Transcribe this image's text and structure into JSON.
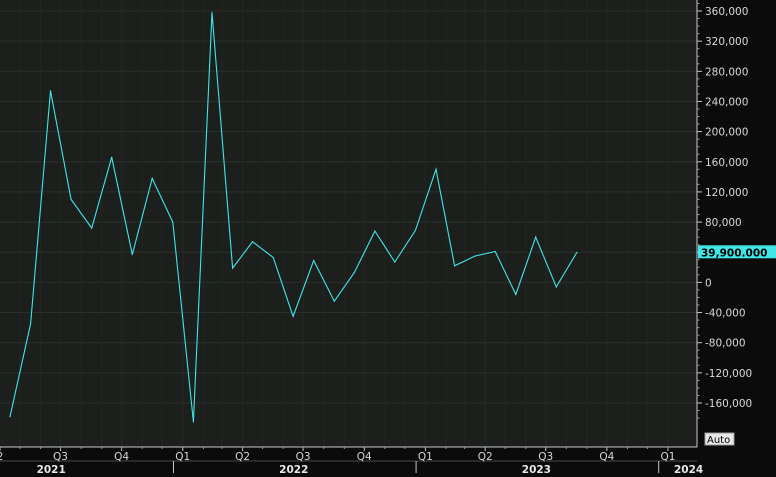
{
  "chart_data": {
    "type": "line",
    "title": "",
    "xlabel": "",
    "ylabel": "",
    "ylim": [
      -190000,
      370000
    ],
    "y_ticks": [
      360000,
      320000,
      280000,
      240000,
      200000,
      160000,
      120000,
      80000,
      40000,
      0,
      -40000,
      -80000,
      -120000,
      -160000
    ],
    "y_tick_labels": [
      "360,000",
      "320,000",
      "280,000",
      "240,000",
      "200,000",
      "160,000",
      "120,000",
      "80,000",
      "40,000",
      "0",
      "-40,000",
      "-80,000",
      "-120,000",
      "-160,000"
    ],
    "last_value_label": "39,900.000",
    "auto_label": "Auto",
    "grid": true,
    "series": [
      {
        "color": "#40e6e6",
        "points": [
          [
            "2021-04-30",
            -178000
          ],
          [
            "2021-05-31",
            -55000
          ],
          [
            "2021-06-30",
            254000
          ],
          [
            "2021-07-31",
            110000
          ],
          [
            "2021-08-31",
            72000
          ],
          [
            "2021-09-30",
            166000
          ],
          [
            "2021-10-31",
            37000
          ],
          [
            "2021-11-30",
            138000
          ],
          [
            "2021-12-31",
            80000
          ],
          [
            "2022-01-31",
            -185000
          ],
          [
            "2022-02-28",
            358000
          ],
          [
            "2022-03-31",
            19000
          ],
          [
            "2022-04-30",
            54000
          ],
          [
            "2022-05-31",
            33000
          ],
          [
            "2022-06-30",
            -45000
          ],
          [
            "2022-07-31",
            29000
          ],
          [
            "2022-08-31",
            -25000
          ],
          [
            "2022-09-30",
            13000
          ],
          [
            "2022-10-31",
            68000
          ],
          [
            "2022-11-30",
            27000
          ],
          [
            "2022-12-31",
            69000
          ],
          [
            "2023-01-31",
            150000
          ],
          [
            "2023-02-28",
            22000
          ],
          [
            "2023-03-31",
            35000
          ],
          [
            "2023-04-30",
            41000
          ],
          [
            "2023-05-31",
            -16000
          ],
          [
            "2023-06-30",
            60000
          ],
          [
            "2023-07-31",
            -6000
          ],
          [
            "2023-08-31",
            39900
          ]
        ]
      }
    ],
    "x_quarter_ticks": [
      {
        "date": "2021-04-15",
        "label": "2"
      },
      {
        "date": "2021-07-15",
        "label": "Q3"
      },
      {
        "date": "2021-10-15",
        "label": "Q4"
      },
      {
        "date": "2022-01-15",
        "label": "Q1"
      },
      {
        "date": "2022-04-15",
        "label": "Q2"
      },
      {
        "date": "2022-07-15",
        "label": "Q3"
      },
      {
        "date": "2022-10-15",
        "label": "Q4"
      },
      {
        "date": "2023-01-15",
        "label": "Q1"
      },
      {
        "date": "2023-04-15",
        "label": "Q2"
      },
      {
        "date": "2023-07-15",
        "label": "Q3"
      },
      {
        "date": "2023-10-15",
        "label": "Q4"
      },
      {
        "date": "2024-01-15",
        "label": "Q1"
      }
    ],
    "x_year_labels": [
      {
        "date": "2021-07-01",
        "label": "2021"
      },
      {
        "date": "2022-07-01",
        "label": "2022"
      },
      {
        "date": "2023-07-01",
        "label": "2023"
      },
      {
        "date": "2024-02-15",
        "label": "2024"
      }
    ],
    "x_year_dividers": [
      "2022-01-01",
      "2023-01-01",
      "2024-01-01"
    ]
  }
}
